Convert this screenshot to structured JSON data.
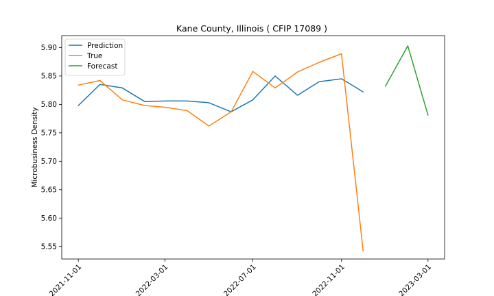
{
  "chart_data": {
    "type": "line",
    "title": "Kane County, Illinois ( CFIP 17089 )",
    "xlabel": "",
    "ylabel": "Microbusiness Density",
    "x_ticks": [
      "2021-11-01",
      "2022-03-01",
      "2022-07-01",
      "2022-11-01",
      "2023-03-01"
    ],
    "y_ticks": [
      "5.55",
      "5.60",
      "5.65",
      "5.70",
      "5.75",
      "5.80",
      "5.85",
      "5.90"
    ],
    "ylim": [
      5.528,
      5.921
    ],
    "xlim": [
      "2021-10-09",
      "2023-03-24"
    ],
    "grid": false,
    "legend_position": "top-left",
    "series": [
      {
        "name": "Prediction",
        "color": "#1f77b4",
        "x": [
          "2021-11-01",
          "2021-12-01",
          "2022-01-01",
          "2022-02-01",
          "2022-03-01",
          "2022-04-01",
          "2022-05-01",
          "2022-06-01",
          "2022-07-01",
          "2022-08-01",
          "2022-09-01",
          "2022-10-01",
          "2022-11-01",
          "2022-12-01"
        ],
        "y": [
          5.798,
          5.835,
          5.829,
          5.805,
          5.806,
          5.806,
          5.803,
          5.787,
          5.808,
          5.85,
          5.816,
          5.84,
          5.845,
          5.822
        ]
      },
      {
        "name": "True",
        "color": "#ff7f0e",
        "x": [
          "2021-11-01",
          "2021-12-01",
          "2022-01-01",
          "2022-02-01",
          "2022-03-01",
          "2022-04-01",
          "2022-05-01",
          "2022-06-01",
          "2022-07-01",
          "2022-08-01",
          "2022-09-01",
          "2022-10-01",
          "2022-11-01",
          "2022-12-01"
        ],
        "y": [
          5.834,
          5.842,
          5.808,
          5.798,
          5.795,
          5.789,
          5.762,
          5.787,
          5.858,
          5.829,
          5.857,
          5.874,
          5.889,
          5.542
        ]
      },
      {
        "name": "Forecast",
        "color": "#2ca02c",
        "x": [
          "2023-01-01",
          "2023-02-01",
          "2023-03-01"
        ],
        "y": [
          5.832,
          5.903,
          5.781
        ]
      }
    ]
  }
}
